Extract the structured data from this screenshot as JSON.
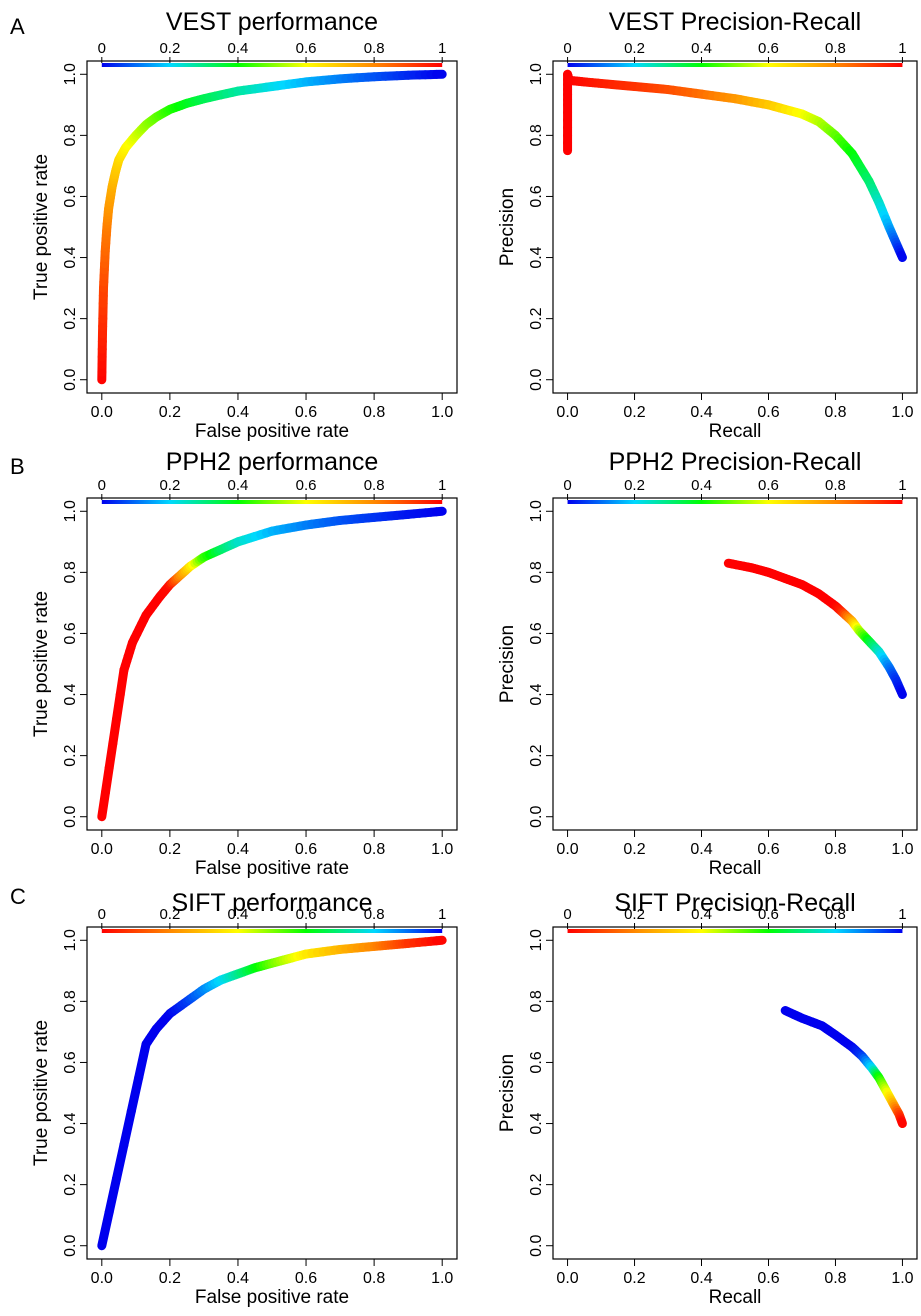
{
  "panel_letters": [
    "A",
    "B",
    "C"
  ],
  "colorbar_ticks": [
    "0",
    "0.2",
    "0.4",
    "0.6",
    "0.8",
    "1"
  ],
  "chart_data": [
    {
      "id": "vest-roc",
      "type": "line",
      "title": "VEST performance",
      "xlabel": "False positive rate",
      "ylabel": "True positive rate",
      "xlim": [
        0,
        1
      ],
      "ylim": [
        0,
        1
      ],
      "xticks": [
        "0.0",
        "0.2",
        "0.4",
        "0.6",
        "0.8",
        "1.0"
      ],
      "yticks": [
        "0.0",
        "0.2",
        "0.4",
        "0.6",
        "0.8",
        "1.0"
      ],
      "colorbar": {
        "ticks": [
          "0",
          "0.2",
          "0.4",
          "0.6",
          "0.8",
          "1"
        ],
        "colors": [
          "#0000ee",
          "#00d8ff",
          "#00ff00",
          "#ffff00",
          "#ff8800",
          "#ff0000"
        ]
      },
      "series": [
        {
          "x": [
            0,
            0.002,
            0.005,
            0.01,
            0.015,
            0.02,
            0.03,
            0.04,
            0.05,
            0.07,
            0.1,
            0.13,
            0.16,
            0.2,
            0.25,
            0.3,
            0.4,
            0.5,
            0.6,
            0.7,
            0.8,
            0.9,
            1.0
          ],
          "y": [
            0,
            0.15,
            0.3,
            0.42,
            0.5,
            0.56,
            0.63,
            0.68,
            0.72,
            0.76,
            0.8,
            0.835,
            0.86,
            0.885,
            0.905,
            0.92,
            0.945,
            0.96,
            0.975,
            0.985,
            0.992,
            0.997,
            1.0
          ],
          "color_values": [
            1,
            0.95,
            0.9,
            0.85,
            0.82,
            0.78,
            0.74,
            0.7,
            0.67,
            0.62,
            0.57,
            0.52,
            0.48,
            0.43,
            0.38,
            0.34,
            0.28,
            0.22,
            0.17,
            0.12,
            0.08,
            0.04,
            0
          ]
        }
      ]
    },
    {
      "id": "vest-pr",
      "type": "line",
      "title": "VEST Precision-Recall",
      "xlabel": "Recall",
      "ylabel": "Precision",
      "xlim": [
        0,
        1
      ],
      "ylim": [
        0,
        1
      ],
      "xticks": [
        "0.0",
        "0.2",
        "0.4",
        "0.6",
        "0.8",
        "1.0"
      ],
      "yticks": [
        "0.0",
        "0.2",
        "0.4",
        "0.6",
        "0.8",
        "1.0"
      ],
      "colorbar": {
        "ticks": [
          "0",
          "0.2",
          "0.4",
          "0.6",
          "0.8",
          "1"
        ],
        "colors": [
          "#0000ee",
          "#00d8ff",
          "#00ff00",
          "#ffff00",
          "#ff8800",
          "#ff0000"
        ]
      },
      "series": [
        {
          "x": [
            0,
            0,
            0,
            0.005,
            0.05,
            0.1,
            0.2,
            0.3,
            0.4,
            0.5,
            0.6,
            0.7,
            0.75,
            0.8,
            0.85,
            0.9,
            0.93,
            0.96,
            0.98,
            1.0
          ],
          "y": [
            0.75,
            0.9,
            1.0,
            0.98,
            0.975,
            0.97,
            0.96,
            0.95,
            0.935,
            0.92,
            0.9,
            0.87,
            0.845,
            0.8,
            0.74,
            0.65,
            0.58,
            0.5,
            0.45,
            0.4
          ],
          "color_values": [
            1,
            1,
            1,
            1,
            0.98,
            0.96,
            0.93,
            0.89,
            0.84,
            0.78,
            0.7,
            0.6,
            0.55,
            0.48,
            0.4,
            0.32,
            0.25,
            0.16,
            0.08,
            0
          ]
        }
      ]
    },
    {
      "id": "pph2-roc",
      "type": "line",
      "title": "PPH2 performance",
      "xlabel": "False positive rate",
      "ylabel": "True positive rate",
      "xlim": [
        0,
        1
      ],
      "ylim": [
        0,
        1
      ],
      "xticks": [
        "0.0",
        "0.2",
        "0.4",
        "0.6",
        "0.8",
        "1.0"
      ],
      "yticks": [
        "0.0",
        "0.2",
        "0.4",
        "0.6",
        "0.8",
        "1.0"
      ],
      "colorbar": {
        "ticks": [
          "0",
          "0.2",
          "0.4",
          "0.6",
          "0.8",
          "1"
        ],
        "colors": [
          "#0000ee",
          "#00d8ff",
          "#00ff00",
          "#ffff00",
          "#ff8800",
          "#ff0000"
        ]
      },
      "series": [
        {
          "x": [
            0,
            0.065,
            0.09,
            0.13,
            0.17,
            0.2,
            0.23,
            0.26,
            0.3,
            0.35,
            0.4,
            0.5,
            0.6,
            0.7,
            0.8,
            0.9,
            1.0
          ],
          "y": [
            0,
            0.48,
            0.57,
            0.66,
            0.72,
            0.76,
            0.79,
            0.82,
            0.85,
            0.875,
            0.9,
            0.935,
            0.955,
            0.97,
            0.98,
            0.99,
            1.0
          ],
          "color_values": [
            1,
            1,
            1,
            1,
            1,
            0.98,
            0.8,
            0.65,
            0.45,
            0.33,
            0.25,
            0.17,
            0.12,
            0.08,
            0.05,
            0.02,
            0
          ]
        }
      ]
    },
    {
      "id": "pph2-pr",
      "type": "line",
      "title": "PPH2 Precision-Recall",
      "xlabel": "Recall",
      "ylabel": "Precision",
      "xlim": [
        0,
        1
      ],
      "ylim": [
        0,
        1
      ],
      "xticks": [
        "0.0",
        "0.2",
        "0.4",
        "0.6",
        "0.8",
        "1.0"
      ],
      "yticks": [
        "0.0",
        "0.2",
        "0.4",
        "0.6",
        "0.8",
        "1.0"
      ],
      "colorbar": {
        "ticks": [
          "0",
          "0.2",
          "0.4",
          "0.6",
          "0.8",
          "1"
        ],
        "colors": [
          "#0000ee",
          "#00d8ff",
          "#00ff00",
          "#ffff00",
          "#ff8800",
          "#ff0000"
        ]
      },
      "series": [
        {
          "x": [
            0.48,
            0.55,
            0.6,
            0.65,
            0.7,
            0.75,
            0.8,
            0.82,
            0.85,
            0.87,
            0.9,
            0.93,
            0.96,
            0.98,
            1.0
          ],
          "y": [
            0.83,
            0.815,
            0.8,
            0.78,
            0.76,
            0.73,
            0.69,
            0.67,
            0.64,
            0.61,
            0.575,
            0.54,
            0.49,
            0.45,
            0.4
          ],
          "color_values": [
            1,
            1,
            1,
            1,
            1,
            1,
            1,
            0.95,
            0.75,
            0.55,
            0.38,
            0.25,
            0.12,
            0.05,
            0
          ]
        }
      ]
    },
    {
      "id": "sift-roc",
      "type": "line",
      "title": "SIFT performance",
      "xlabel": "False positive rate",
      "ylabel": "True positive rate",
      "xlim": [
        0,
        1
      ],
      "ylim": [
        0,
        1
      ],
      "xticks": [
        "0.0",
        "0.2",
        "0.4",
        "0.6",
        "0.8",
        "1.0"
      ],
      "yticks": [
        "0.0",
        "0.2",
        "0.4",
        "0.6",
        "0.8",
        "1.0"
      ],
      "colorbar": {
        "ticks": [
          "0",
          "0.2",
          "0.4",
          "0.6",
          "0.8",
          "1"
        ],
        "colors": [
          "#ff0000",
          "#ff8800",
          "#ffff00",
          "#00ff00",
          "#00d8ff",
          "#0000ee"
        ]
      },
      "series": [
        {
          "x": [
            0,
            0.13,
            0.16,
            0.2,
            0.25,
            0.3,
            0.35,
            0.4,
            0.45,
            0.5,
            0.55,
            0.6,
            0.7,
            0.8,
            0.85,
            0.9,
            1.0
          ],
          "y": [
            0,
            0.66,
            0.71,
            0.76,
            0.8,
            0.84,
            0.87,
            0.89,
            0.91,
            0.925,
            0.94,
            0.955,
            0.97,
            0.98,
            0.985,
            0.99,
            1.0
          ],
          "color_values": [
            0,
            0,
            0,
            0,
            0.05,
            0.12,
            0.2,
            0.28,
            0.38,
            0.48,
            0.56,
            0.63,
            0.72,
            0.8,
            0.86,
            0.92,
            1
          ]
        }
      ]
    },
    {
      "id": "sift-pr",
      "type": "line",
      "title": "SIFT Precision-Recall",
      "xlabel": "Recall",
      "ylabel": "Precision",
      "xlim": [
        0,
        1
      ],
      "ylim": [
        0,
        1
      ],
      "xticks": [
        "0.0",
        "0.2",
        "0.4",
        "0.6",
        "0.8",
        "1.0"
      ],
      "yticks": [
        "0.0",
        "0.2",
        "0.4",
        "0.6",
        "0.8",
        "1.0"
      ],
      "colorbar": {
        "ticks": [
          "0",
          "0.2",
          "0.4",
          "0.6",
          "0.8",
          "1"
        ],
        "colors": [
          "#ff0000",
          "#ff8800",
          "#ffff00",
          "#00ff00",
          "#00d8ff",
          "#0000ee"
        ]
      },
      "series": [
        {
          "x": [
            0.65,
            0.7,
            0.76,
            0.8,
            0.85,
            0.88,
            0.91,
            0.93,
            0.95,
            0.97,
            0.99,
            1.0
          ],
          "y": [
            0.77,
            0.745,
            0.72,
            0.69,
            0.65,
            0.62,
            0.58,
            0.55,
            0.51,
            0.47,
            0.43,
            0.4
          ],
          "color_values": [
            0,
            0,
            0,
            0,
            0,
            0.05,
            0.2,
            0.4,
            0.55,
            0.7,
            0.9,
            1
          ]
        }
      ]
    }
  ]
}
